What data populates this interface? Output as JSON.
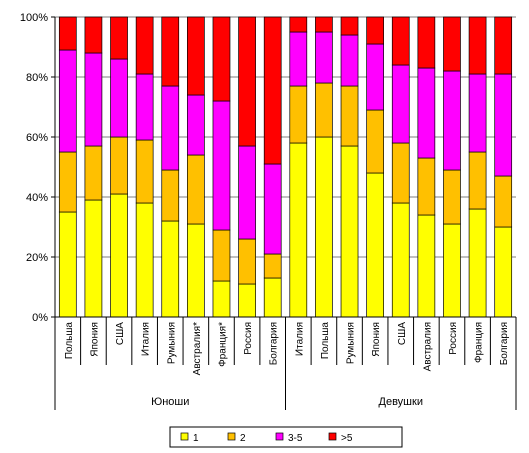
{
  "chart_data": {
    "type": "bar",
    "stacked": true,
    "percent": true,
    "ylim": [
      0,
      100
    ],
    "yticks": [
      "0%",
      "20%",
      "40%",
      "60%",
      "80%",
      "100%"
    ],
    "groups": [
      {
        "label": "Юноши",
        "categories": [
          "Польша",
          "Япония",
          "США",
          "Италия",
          "Румыния",
          "Австралия*",
          "Франция*",
          "Россия",
          "Болгария"
        ]
      },
      {
        "label": "Девушки",
        "categories": [
          "Италия",
          "Польша",
          "Румыния",
          "Япония",
          "США",
          "Австралия",
          "Россия",
          "Франция",
          "Болгария"
        ]
      }
    ],
    "categories": [
      "Польша",
      "Япония",
      "США",
      "Италия",
      "Румыния",
      "Австралия*",
      "Франция*",
      "Россия",
      "Болгария",
      "Италия",
      "Польша",
      "Румыния",
      "Япония",
      "США",
      "Австралия",
      "Россия",
      "Франция",
      "Болгария"
    ],
    "series": [
      {
        "name": "1",
        "color": "#FFFF00",
        "values": [
          35,
          39,
          41,
          38,
          32,
          31,
          12,
          11,
          13,
          58,
          60,
          57,
          48,
          38,
          34,
          31,
          36,
          30
        ]
      },
      {
        "name": "2",
        "color": "#FFC000",
        "values": [
          20,
          18,
          19,
          21,
          17,
          23,
          17,
          15,
          8,
          19,
          18,
          20,
          21,
          20,
          19,
          18,
          19,
          17
        ]
      },
      {
        "name": "3-5",
        "color": "#FF00FF",
        "values": [
          34,
          31,
          26,
          22,
          28,
          20,
          43,
          31,
          30,
          18,
          17,
          17,
          22,
          26,
          30,
          33,
          26,
          34
        ]
      },
      {
        "name": ">5",
        "color": "#FF0000",
        "values": [
          11,
          12,
          14,
          19,
          23,
          26,
          28,
          43,
          49,
          5,
          5,
          6,
          9,
          16,
          17,
          18,
          19,
          19
        ]
      }
    ],
    "grid": true,
    "legend_position": "bottom"
  }
}
